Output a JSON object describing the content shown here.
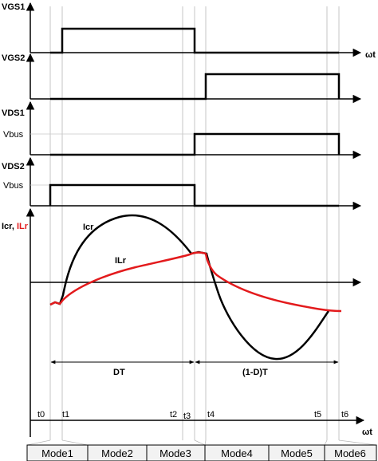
{
  "title": "",
  "panels": {
    "vgs1": {
      "label": "VGS1",
      "axis_end": "ωt"
    },
    "vgs2": {
      "label": "VGS2"
    },
    "vds1": {
      "label": "VDS1",
      "level": "Vbus"
    },
    "vds2": {
      "label": "VDS2",
      "level": "Vbus"
    },
    "current": {
      "label_black": "Icr, ",
      "label_red": "ILr",
      "curve_black": "Icr",
      "curve_red": "ILr",
      "axis_end": "ωt"
    }
  },
  "intervals": {
    "dt": "DT",
    "one_minus_dt": "(1-D)T"
  },
  "time_marks": [
    "t0",
    "t1",
    "t2",
    "t3",
    "t4",
    "t5",
    "t6"
  ],
  "modes": [
    "Mode1",
    "Mode2",
    "Mode3",
    "Mode4",
    "Mode5",
    "Mode6"
  ],
  "colors": {
    "wave": "#000000",
    "ilr": "#e31a1c",
    "grid": "#b8b8b8",
    "mode_fill": "#f2f2f2"
  }
}
